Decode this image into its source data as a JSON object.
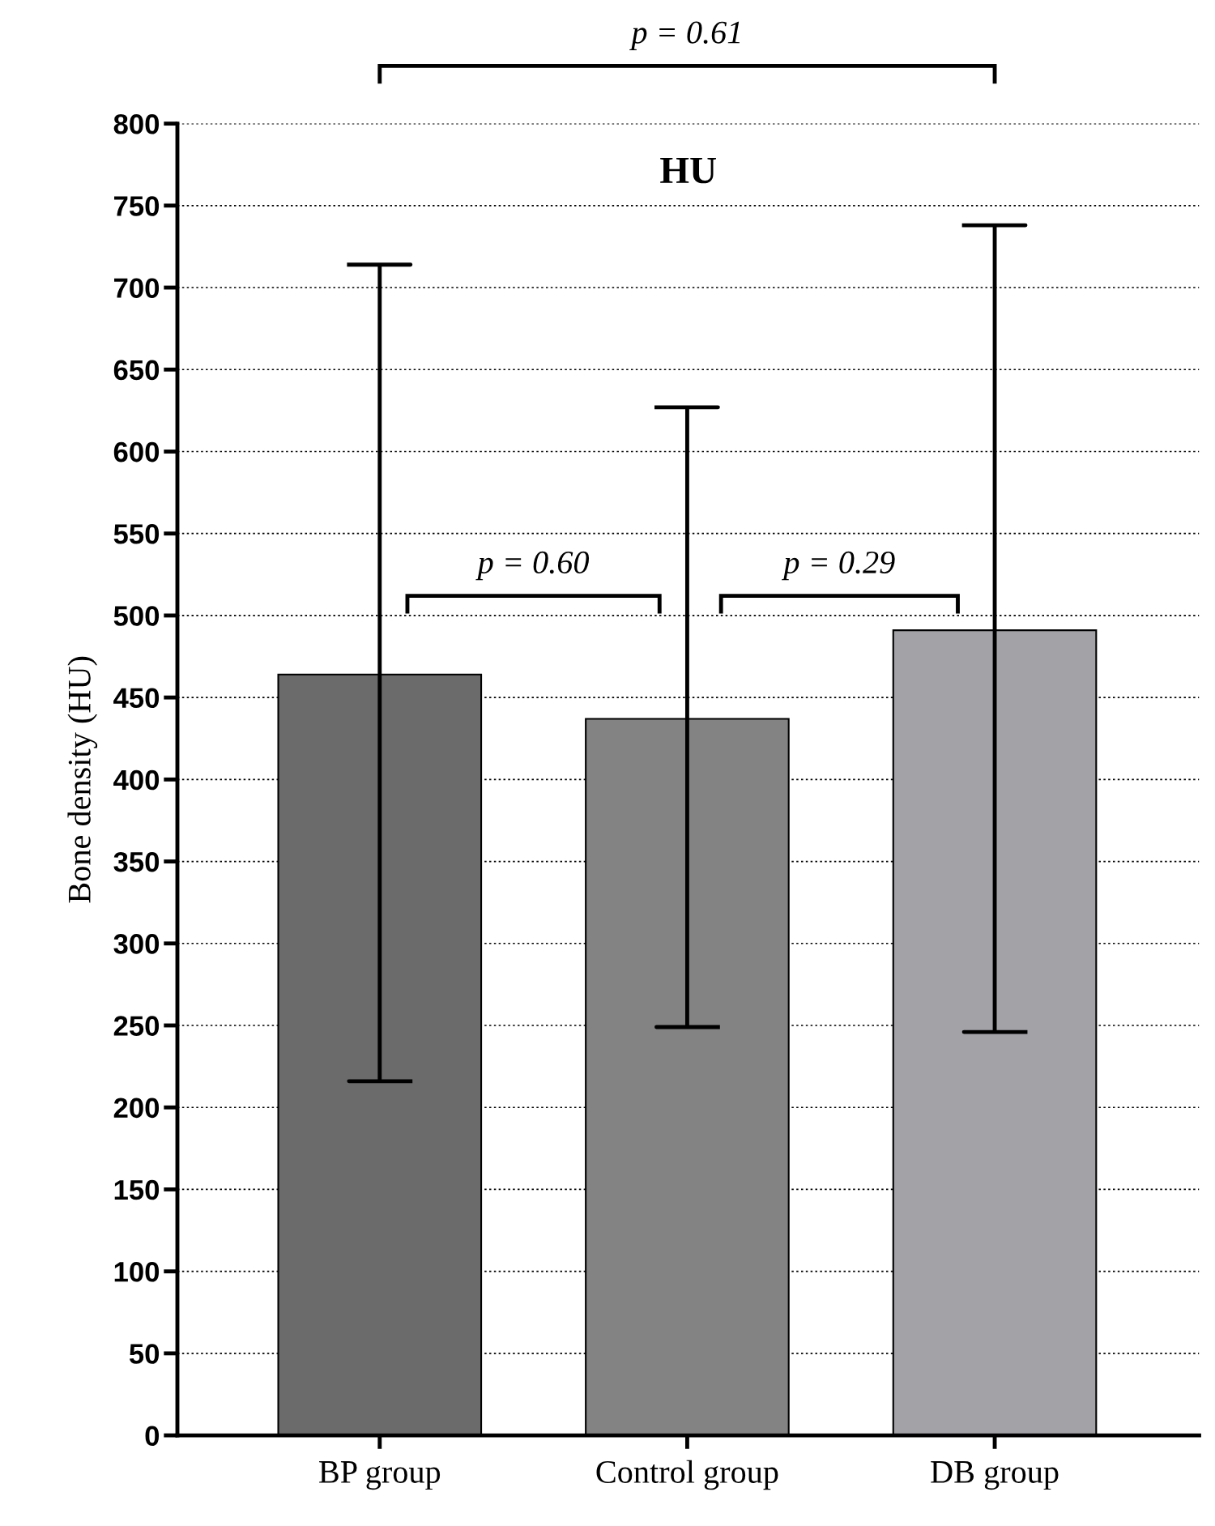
{
  "chart_data": {
    "type": "bar",
    "title": "HU",
    "ylabel": "Bone density (HU)",
    "categories": [
      "BP group",
      "Control group",
      "DB group"
    ],
    "values": [
      464,
      437,
      491
    ],
    "colors": [
      "#6b6b6b",
      "#838383",
      "#a3a2a7"
    ],
    "errors": [
      [
        216,
        714
      ],
      [
        249,
        627
      ],
      [
        246,
        738
      ]
    ],
    "ylim": [
      0,
      800
    ],
    "yticks": [
      0,
      50,
      100,
      150,
      200,
      250,
      300,
      350,
      400,
      450,
      500,
      550,
      600,
      650,
      700,
      750,
      800
    ],
    "grid": "y",
    "annotations": [
      "p = 0.61",
      "p = 0.60",
      "p = 0.29"
    ]
  }
}
